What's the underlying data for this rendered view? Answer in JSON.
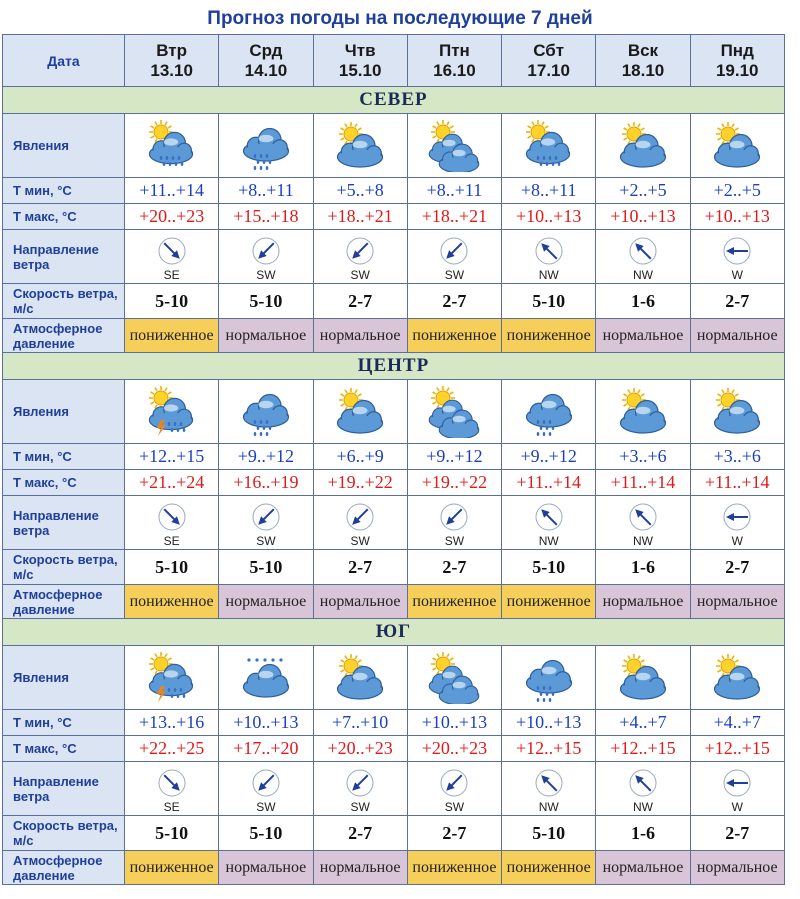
{
  "title": "Прогноз погоды на последующие 7 дней",
  "header": {
    "label": "Дата",
    "days": [
      {
        "dow": "Втр",
        "date": "13.10"
      },
      {
        "dow": "Срд",
        "date": "14.10"
      },
      {
        "dow": "Чтв",
        "date": "15.10"
      },
      {
        "dow": "Птн",
        "date": "16.10"
      },
      {
        "dow": "Сбт",
        "date": "17.10"
      },
      {
        "dow": "Вск",
        "date": "18.10"
      },
      {
        "dow": "Пнд",
        "date": "19.10"
      }
    ]
  },
  "row_labels": {
    "phenomena": "Явления",
    "tmin": "Т мин, °С",
    "tmax": "Т макс, °С",
    "wind_dir": "Направление ветра",
    "wind_speed": "Скорость ветра, м/с",
    "pressure": "Атмосферное давление"
  },
  "colors": {
    "tmin": "#1b3fc2",
    "tmax": "#e01a1a",
    "pressure_low": "#f6cf5a",
    "pressure_normal": "#d9c5d8",
    "region_band": "#d6e7c6",
    "label_bg": "#dbe4f3"
  },
  "regions": [
    {
      "name": "СЕВЕР",
      "icons": [
        "sun-cloud-rain-icon",
        "cloud-rain-icon",
        "sun-cloud-icon",
        "sun-clouds-icon",
        "sun-cloud-rain-icon",
        "sun-cloud-icon",
        "sun-cloud-icon"
      ],
      "tmin": [
        "+11..+14",
        "+8..+11",
        "+5..+8",
        "+8..+11",
        "+8..+11",
        "+2..+5",
        "+2..+5"
      ],
      "tmax": [
        "+20..+23",
        "+15..+18",
        "+18..+21",
        "+18..+21",
        "+10..+13",
        "+10..+13",
        "+10..+13"
      ],
      "wind_dir": [
        "SE",
        "SW",
        "SW",
        "SW",
        "NW",
        "NW",
        "W"
      ],
      "wind_speed": [
        "5-10",
        "5-10",
        "2-7",
        "2-7",
        "5-10",
        "1-6",
        "2-7"
      ],
      "pressure": [
        "пониженное",
        "нормальное",
        "нормальное",
        "пониженное",
        "пониженное",
        "нормальное",
        "нормальное"
      ]
    },
    {
      "name": "ЦЕНТР",
      "icons": [
        "sun-cloud-storm-icon",
        "cloud-rain-icon",
        "sun-cloud-icon",
        "sun-clouds-icon",
        "cloud-rain-icon",
        "sun-cloud-icon",
        "sun-cloud-icon"
      ],
      "tmin": [
        "+12..+15",
        "+9..+12",
        "+6..+9",
        "+9..+12",
        "+9..+12",
        "+3..+6",
        "+3..+6"
      ],
      "tmax": [
        "+21..+24",
        "+16..+19",
        "+19..+22",
        "+19..+22",
        "+11..+14",
        "+11..+14",
        "+11..+14"
      ],
      "wind_dir": [
        "SE",
        "SW",
        "SW",
        "SW",
        "NW",
        "NW",
        "W"
      ],
      "wind_speed": [
        "5-10",
        "5-10",
        "2-7",
        "2-7",
        "5-10",
        "1-6",
        "2-7"
      ],
      "pressure": [
        "пониженное",
        "нормальное",
        "нормальное",
        "пониженное",
        "пониженное",
        "нормальное",
        "нормальное"
      ]
    },
    {
      "name": "ЮГ",
      "icons": [
        "sun-cloud-storm-icon",
        "cloud-snow-icon",
        "sun-cloud-icon",
        "sun-clouds-icon",
        "cloud-rain-icon",
        "sun-cloud-icon",
        "sun-cloud-icon"
      ],
      "tmin": [
        "+13..+16",
        "+10..+13",
        "+7..+10",
        "+10..+13",
        "+10..+13",
        "+4..+7",
        "+4..+7"
      ],
      "tmax": [
        "+22..+25",
        "+17..+20",
        "+20..+23",
        "+20..+23",
        "+12..+15",
        "+12..+15",
        "+12..+15"
      ],
      "wind_dir": [
        "SE",
        "SW",
        "SW",
        "SW",
        "NW",
        "NW",
        "W"
      ],
      "wind_speed": [
        "5-10",
        "5-10",
        "2-7",
        "2-7",
        "5-10",
        "1-6",
        "2-7"
      ],
      "pressure": [
        "пониженное",
        "нормальное",
        "нормальное",
        "пониженное",
        "пониженное",
        "нормальное",
        "нормальное"
      ]
    }
  ]
}
